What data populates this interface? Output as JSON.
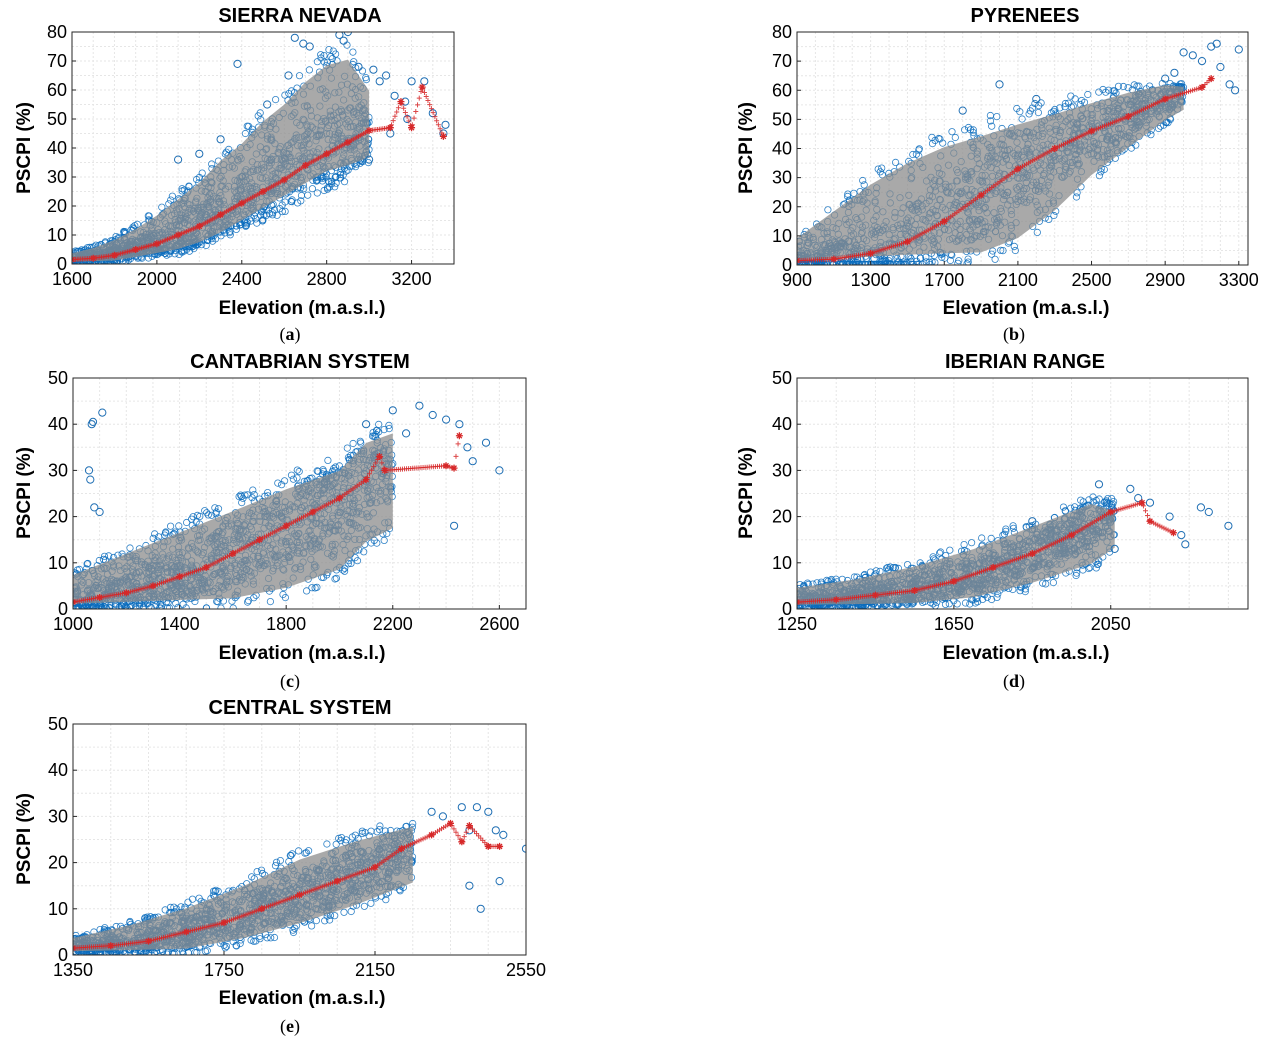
{
  "figure": {
    "panel_labels": [
      {
        "letter": "a"
      },
      {
        "letter": "b"
      },
      {
        "letter": "c"
      },
      {
        "letter": "d"
      },
      {
        "letter": "e"
      }
    ]
  },
  "colors": {
    "scatter_marker": "#1f6fb4",
    "scatter_marker_dense": "#0a6cbd",
    "range_band": "#8c8c8c",
    "median_marker": "#d62728",
    "grid": "#e6e6e6"
  },
  "chart_data": [
    {
      "type": "scatter",
      "title": "SIERRA NEVADA",
      "xlabel": "Elevation (m.a.s.l.)",
      "ylabel": "PSCPI (%)",
      "xlim": [
        1600,
        3400
      ],
      "ylim": [
        0,
        80
      ],
      "xticks": [
        1600,
        2000,
        2400,
        2800,
        3200
      ],
      "yticks": [
        0,
        10,
        20,
        30,
        40,
        50,
        60,
        70,
        80
      ],
      "grid": true,
      "series": [
        {
          "name": "pixels",
          "marker": "circle",
          "color": "#1f6fb4",
          "x": [
            2380,
            2520,
            2620,
            2650,
            2690,
            2720,
            2860,
            2880,
            2900,
            2950,
            3020,
            3050,
            3080,
            3120,
            3170,
            3200,
            3260,
            3300,
            3350,
            3360,
            2200,
            2100,
            2300,
            3000,
            3180,
            3100
          ],
          "y": [
            69,
            55,
            65,
            78,
            76,
            75,
            79,
            77,
            80,
            68,
            67,
            63,
            65,
            58,
            56,
            63,
            63,
            52,
            45,
            48,
            38,
            36,
            43,
            36,
            50,
            45
          ]
        },
        {
          "name": "median",
          "marker": "asterisk",
          "color": "#d62728",
          "x": [
            1600,
            1700,
            1800,
            1900,
            2000,
            2100,
            2200,
            2300,
            2400,
            2500,
            2600,
            2700,
            2800,
            2900,
            3000,
            3100,
            3150,
            3200,
            3250,
            3350
          ],
          "y": [
            1.5,
            2,
            3,
            5,
            7,
            10,
            13,
            17,
            21,
            25,
            29,
            34,
            38,
            42,
            46,
            47,
            56,
            47,
            61,
            44
          ]
        }
      ],
      "envelope": {
        "name": "range",
        "x": [
          1600,
          1700,
          1800,
          1900,
          2000,
          2100,
          2200,
          2300,
          2400,
          2500,
          2600,
          2700,
          2800,
          2900,
          3000
        ],
        "upper": [
          4,
          6,
          9,
          13,
          18,
          24,
          30,
          38,
          44,
          52,
          58,
          66,
          72,
          74,
          62
        ],
        "lower": [
          0,
          0,
          0,
          1,
          2,
          3,
          5,
          8,
          12,
          16,
          20,
          24,
          28,
          30,
          34
        ]
      }
    },
    {
      "type": "scatter",
      "title": "PYRENEES",
      "xlabel": "Elevation (m.a.s.l.)",
      "ylabel": "PSCPI (%)",
      "xlim": [
        900,
        3350
      ],
      "ylim": [
        0,
        80
      ],
      "xticks": [
        900,
        1300,
        1700,
        2100,
        2500,
        2900,
        3300
      ],
      "yticks": [
        0,
        10,
        20,
        30,
        40,
        50,
        60,
        70,
        80
      ],
      "grid": true,
      "series": [
        {
          "name": "pixels",
          "marker": "circle",
          "color": "#1f6fb4",
          "x": [
            2000,
            1800,
            2200,
            2900,
            3000,
            3050,
            3100,
            3150,
            3180,
            3200,
            3250,
            3280,
            3300,
            2950
          ],
          "y": [
            62,
            53,
            57,
            64,
            73,
            72,
            70,
            75,
            76,
            68,
            62,
            60,
            74,
            66
          ]
        },
        {
          "name": "median",
          "marker": "asterisk",
          "color": "#d62728",
          "x": [
            900,
            1100,
            1300,
            1500,
            1700,
            1900,
            2100,
            2300,
            2500,
            2700,
            2900,
            3100,
            3150
          ],
          "y": [
            1.5,
            2,
            4,
            8,
            15,
            24,
            33,
            40,
            46,
            51,
            57,
            61,
            64
          ]
        }
      ],
      "envelope": {
        "name": "range",
        "x": [
          900,
          1100,
          1300,
          1500,
          1700,
          1900,
          2100,
          2300,
          2500,
          2700,
          2900,
          3000
        ],
        "upper": [
          10,
          20,
          30,
          38,
          44,
          48,
          52,
          55,
          58,
          61,
          63,
          62
        ],
        "lower": [
          0,
          0,
          0,
          0,
          0,
          0,
          5,
          15,
          28,
          38,
          48,
          52
        ]
      }
    },
    {
      "type": "scatter",
      "title": "CANTABRIAN SYSTEM",
      "xlabel": "Elevation (m.a.s.l.)",
      "ylabel": "PSCPI (%)",
      "xlim": [
        1000,
        2700
      ],
      "ylim": [
        0,
        50
      ],
      "xticks": [
        1000,
        1400,
        1800,
        2200,
        2600
      ],
      "yticks": [
        0,
        10,
        20,
        30,
        40,
        50
      ],
      "grid": true,
      "series": [
        {
          "name": "pixels",
          "marker": "circle",
          "color": "#1f6fb4",
          "x": [
            1070,
            1075,
            1110,
            1060,
            1065,
            1080,
            1100,
            2100,
            2200,
            2300,
            2400,
            2450,
            2480,
            2500,
            2550,
            2600,
            2350,
            2430,
            2250
          ],
          "y": [
            40,
            40.5,
            42.5,
            30,
            28,
            22,
            21,
            40,
            43,
            44,
            41,
            40,
            35,
            32,
            36,
            30,
            42,
            18,
            38
          ]
        },
        {
          "name": "median",
          "marker": "asterisk",
          "color": "#d62728",
          "x": [
            1000,
            1100,
            1200,
            1300,
            1400,
            1500,
            1600,
            1700,
            1800,
            1900,
            2000,
            2100,
            2150,
            2170,
            2400,
            2430,
            2450
          ],
          "y": [
            1.5,
            2.5,
            3.5,
            5,
            7,
            9,
            12,
            15,
            18,
            21,
            24,
            28,
            33,
            30,
            31,
            30.5,
            37.5
          ]
        }
      ],
      "envelope": {
        "name": "range",
        "x": [
          1000,
          1200,
          1400,
          1600,
          1800,
          2000,
          2100,
          2200
        ],
        "upper": [
          8,
          13,
          18,
          23,
          28,
          32,
          38,
          40
        ],
        "lower": [
          0,
          0,
          0,
          0,
          2,
          6,
          12,
          15
        ]
      }
    },
    {
      "type": "scatter",
      "title": "IBERIAN RANGE",
      "xlabel": "Elevation (m.a.s.l.)",
      "ylabel": "PSCPI (%)",
      "xlim": [
        1250,
        2400
      ],
      "ylim": [
        0,
        50
      ],
      "xticks": [
        1250,
        1650,
        2050
      ],
      "yticks": [
        0,
        10,
        20,
        30,
        40,
        50
      ],
      "grid": true,
      "series": [
        {
          "name": "pixels",
          "marker": "circle",
          "color": "#1f6fb4",
          "x": [
            2100,
            2120,
            2150,
            2200,
            2230,
            2240,
            2280,
            2300,
            2350,
            2020,
            2060,
            1850
          ],
          "y": [
            26,
            24,
            23,
            20,
            16,
            14,
            22,
            21,
            18,
            27,
            13,
            19
          ]
        },
        {
          "name": "median",
          "marker": "asterisk",
          "color": "#d62728",
          "x": [
            1250,
            1350,
            1450,
            1550,
            1650,
            1750,
            1850,
            1950,
            2050,
            2130,
            2150,
            2210
          ],
          "y": [
            1.5,
            2,
            3,
            4,
            6,
            9,
            12,
            16,
            21,
            23,
            19,
            16.5
          ]
        }
      ],
      "envelope": {
        "name": "range",
        "x": [
          1250,
          1400,
          1550,
          1700,
          1850,
          2000,
          2060
        ],
        "upper": [
          5,
          7,
          10,
          14,
          19,
          24,
          22
        ],
        "lower": [
          0,
          0,
          0,
          1,
          4,
          8,
          12
        ]
      }
    },
    {
      "type": "scatter",
      "title": "CENTRAL SYSTEM",
      "xlabel": "Elevation (m.a.s.l.)",
      "ylabel": "PSCPI (%)",
      "xlim": [
        1350,
        2550
      ],
      "ylim": [
        0,
        50
      ],
      "xticks": [
        1350,
        1750,
        2150,
        2550
      ],
      "yticks": [
        0,
        10,
        20,
        30,
        40,
        50
      ],
      "grid": true,
      "series": [
        {
          "name": "pixels",
          "marker": "circle",
          "color": "#1f6fb4",
          "x": [
            2300,
            2330,
            2380,
            2400,
            2420,
            2450,
            2470,
            2490,
            2550,
            2400,
            2430,
            2480
          ],
          "y": [
            31,
            30,
            32,
            27,
            32,
            31,
            27,
            26,
            23,
            15,
            10,
            16
          ]
        },
        {
          "name": "median",
          "marker": "asterisk",
          "color": "#d62728",
          "x": [
            1350,
            1450,
            1550,
            1650,
            1750,
            1850,
            1950,
            2050,
            2150,
            2220,
            2300,
            2350,
            2380,
            2400,
            2450,
            2480
          ],
          "y": [
            1.5,
            2,
            3,
            5,
            7,
            10,
            13,
            16,
            19,
            23,
            26,
            28.5,
            24.5,
            28,
            23.5,
            23.5
          ]
        }
      ],
      "envelope": {
        "name": "range",
        "x": [
          1350,
          1500,
          1650,
          1800,
          1950,
          2100,
          2250
        ],
        "upper": [
          4,
          7,
          11,
          16,
          22,
          26,
          29
        ],
        "lower": [
          0,
          0,
          0,
          2,
          5,
          9,
          14
        ]
      }
    }
  ]
}
